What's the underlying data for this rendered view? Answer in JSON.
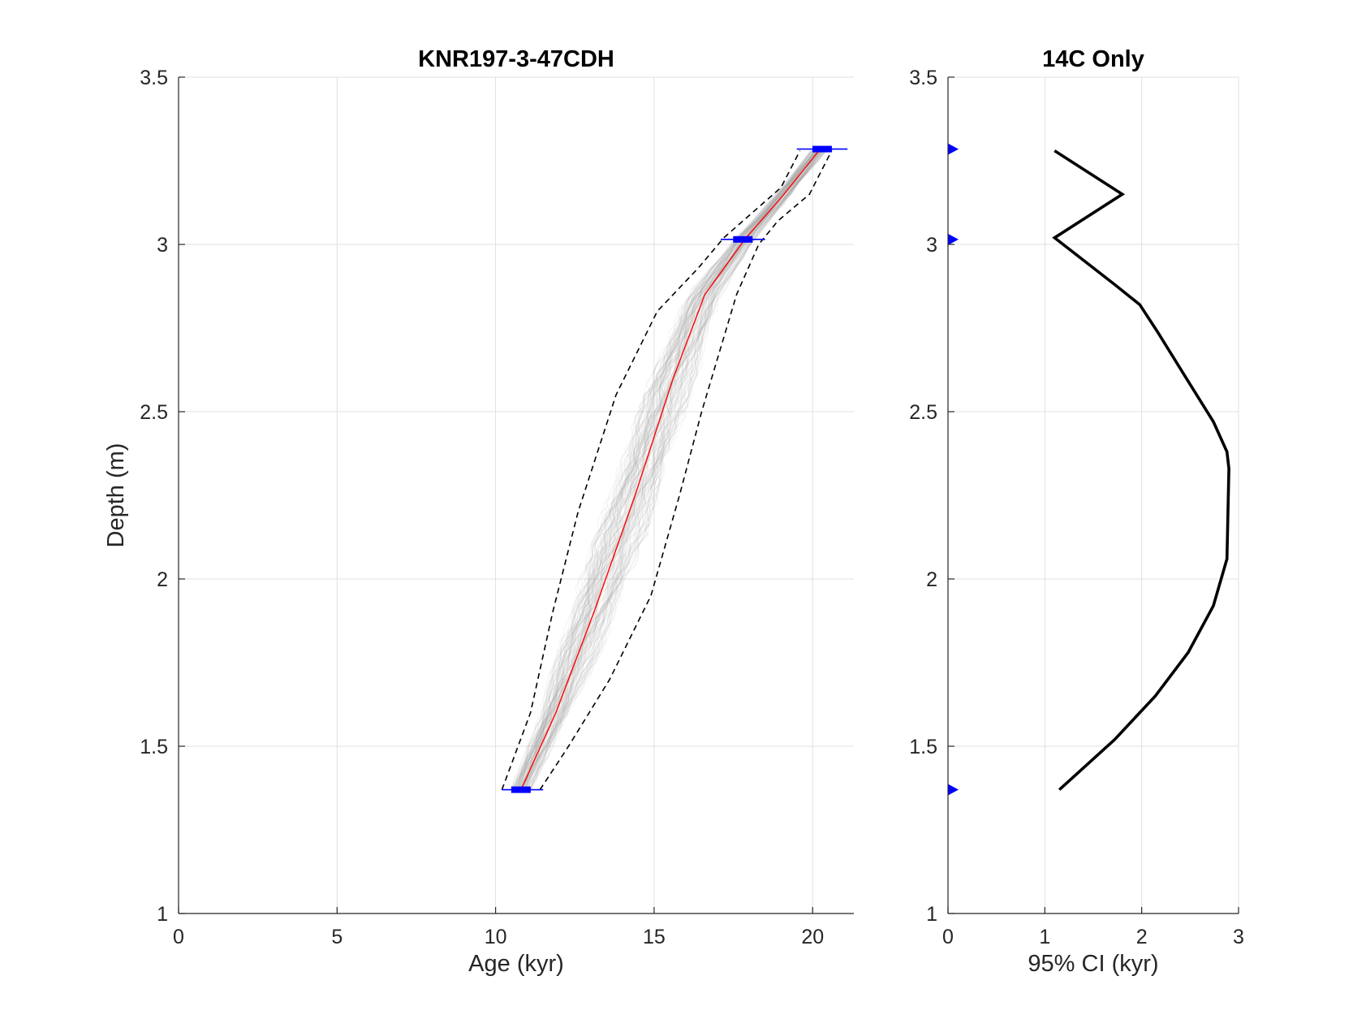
{
  "chart_data": [
    {
      "type": "line",
      "title": "KNR197-3-47CDH",
      "xlabel": "Age (kyr)",
      "ylabel": "Depth (m)",
      "xlim": [
        0,
        21.3
      ],
      "ylim": [
        1,
        3.5
      ],
      "xticks": [
        0,
        5,
        10,
        15,
        20
      ],
      "yticks": [
        1,
        1.5,
        2,
        2.5,
        3,
        3.5
      ],
      "xtick_labels": [
        "0",
        "5",
        "10",
        "15",
        "20"
      ],
      "ytick_labels": [
        "1",
        "1.5",
        "2",
        "2.5",
        "3",
        "3.5"
      ],
      "grid": true,
      "colors": {
        "median": "#ff0000",
        "bounds": "#000000",
        "ensemble": "#9a9a9a",
        "dates": "#0000ff"
      },
      "series": [
        {
          "role": "median",
          "points": [
            [
              10.8,
              1.37
            ],
            [
              11.9,
              1.6
            ],
            [
              13.1,
              1.9
            ],
            [
              14.4,
              2.25
            ],
            [
              15.6,
              2.6
            ],
            [
              16.6,
              2.85
            ],
            [
              17.9,
              3.02
            ],
            [
              19.1,
              3.15
            ],
            [
              20.2,
              3.28
            ]
          ]
        },
        {
          "role": "lower-bound",
          "points": [
            [
              10.2,
              1.37
            ],
            [
              11.1,
              1.6
            ],
            [
              11.8,
              1.9
            ],
            [
              12.6,
              2.2
            ],
            [
              13.8,
              2.55
            ],
            [
              15.1,
              2.8
            ],
            [
              16.4,
              2.93
            ],
            [
              17.2,
              3.02
            ],
            [
              18.4,
              3.12
            ],
            [
              19.0,
              3.17
            ],
            [
              19.6,
              3.28
            ]
          ]
        },
        {
          "role": "upper-bound",
          "points": [
            [
              11.4,
              1.37
            ],
            [
              12.3,
              1.5
            ],
            [
              13.6,
              1.7
            ],
            [
              14.9,
              1.95
            ],
            [
              15.8,
              2.25
            ],
            [
              16.5,
              2.5
            ],
            [
              17.6,
              2.85
            ],
            [
              18.3,
              3.0
            ],
            [
              18.9,
              3.07
            ],
            [
              19.9,
              3.15
            ],
            [
              20.6,
              3.28
            ]
          ]
        }
      ],
      "dates": [
        {
          "age": 10.8,
          "depth": 1.37,
          "age_min": 10.2,
          "age_max": 11.5
        },
        {
          "age": 17.8,
          "depth": 3.015,
          "age_min": 17.1,
          "age_max": 18.5
        },
        {
          "age": 20.3,
          "depth": 3.285,
          "age_min": 19.5,
          "age_max": 21.1
        }
      ]
    },
    {
      "type": "line",
      "title": "14C Only",
      "xlabel": "95% CI (kyr)",
      "ylabel": "",
      "xlim": [
        0,
        3
      ],
      "ylim": [
        1,
        3.5
      ],
      "xticks": [
        0,
        1,
        2,
        3
      ],
      "yticks": [
        1,
        1.5,
        2,
        2.5,
        3,
        3.5
      ],
      "xtick_labels": [
        "0",
        "1",
        "2",
        "3"
      ],
      "ytick_labels": [
        "1",
        "1.5",
        "2",
        "2.5",
        "3",
        "3.5"
      ],
      "grid": true,
      "colors": {
        "line": "#000000",
        "markers": "#0000ff"
      },
      "series": [
        {
          "role": "ci-width",
          "points": [
            [
              1.15,
              1.37
            ],
            [
              1.72,
              1.52
            ],
            [
              2.14,
              1.65
            ],
            [
              2.48,
              1.78
            ],
            [
              2.74,
              1.92
            ],
            [
              2.88,
              2.06
            ],
            [
              2.9,
              2.33
            ],
            [
              2.88,
              2.38
            ],
            [
              2.74,
              2.47
            ],
            [
              2.46,
              2.6
            ],
            [
              2.16,
              2.74
            ],
            [
              1.98,
              2.82
            ],
            [
              1.72,
              2.88
            ],
            [
              1.1,
              3.02
            ],
            [
              1.8,
              3.15
            ],
            [
              1.1,
              3.28
            ]
          ]
        }
      ],
      "markers": [
        1.37,
        3.015,
        3.285
      ]
    }
  ]
}
